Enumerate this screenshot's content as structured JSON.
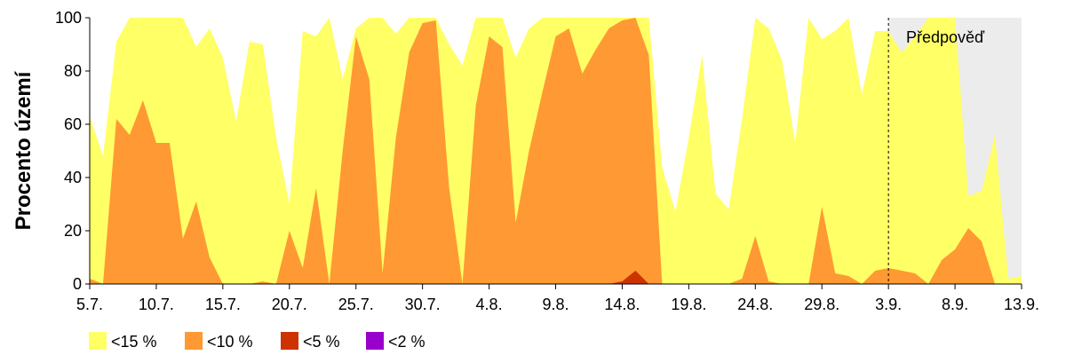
{
  "chart_data": {
    "type": "area",
    "ylabel": "Procento území",
    "ylim": [
      0,
      100
    ],
    "yticks": [
      0,
      20,
      40,
      60,
      80,
      100
    ],
    "x_range": [
      "5.7.",
      "13.9."
    ],
    "xticks": [
      "5.7.",
      "10.7.",
      "15.7.",
      "20.7.",
      "25.7.",
      "30.7.",
      "4.8.",
      "9.8.",
      "14.8.",
      "19.8.",
      "24.8.",
      "29.8.",
      "3.9.",
      "8.9.",
      "13.9."
    ],
    "dates": [
      "5.7.",
      "6.7.",
      "7.7.",
      "8.7.",
      "9.7.",
      "10.7.",
      "11.7.",
      "12.7.",
      "13.7.",
      "14.7.",
      "15.7.",
      "16.7.",
      "17.7.",
      "18.7.",
      "19.7.",
      "20.7.",
      "21.7.",
      "22.7.",
      "23.7.",
      "24.7.",
      "25.7.",
      "26.7.",
      "27.7.",
      "28.7.",
      "29.7.",
      "30.7.",
      "31.7.",
      "1.8.",
      "2.8.",
      "3.8.",
      "4.8.",
      "5.8.",
      "6.8.",
      "7.8.",
      "8.8.",
      "9.8.",
      "10.8.",
      "11.8.",
      "12.8.",
      "13.8.",
      "14.8.",
      "15.8.",
      "16.8.",
      "17.8.",
      "18.8.",
      "19.8.",
      "20.8.",
      "21.8.",
      "22.8.",
      "23.8.",
      "24.8.",
      "25.8.",
      "26.8.",
      "27.8.",
      "28.8.",
      "29.8.",
      "30.8.",
      "31.8.",
      "1.9.",
      "2.9.",
      "3.9.",
      "4.9.",
      "5.9.",
      "6.9.",
      "7.9.",
      "8.9.",
      "9.9.",
      "10.9.",
      "11.9.",
      "12.9.",
      "13.9."
    ],
    "series": [
      {
        "name": "<15 %",
        "color": "#ffff66",
        "values": [
          63,
          48,
          91,
          100,
          100,
          100,
          100,
          100,
          89,
          96,
          85,
          61,
          91,
          90,
          55,
          30,
          95,
          93,
          100,
          77,
          96,
          100,
          100,
          94,
          100,
          100,
          100,
          90,
          82,
          100,
          100,
          100,
          85,
          96,
          100,
          100,
          100,
          100,
          100,
          100,
          100,
          100,
          100,
          44,
          27,
          55,
          86,
          34,
          28,
          62,
          100,
          96,
          84,
          53,
          100,
          92,
          95,
          100,
          71,
          95,
          95,
          87,
          93,
          100,
          100,
          100,
          33,
          35,
          56,
          2,
          3
        ]
      },
      {
        "name": "<10 %",
        "color": "#ff9933",
        "values": [
          2,
          0,
          62,
          56,
          69,
          53,
          53,
          17,
          31,
          10,
          0,
          0,
          0,
          1,
          0,
          20,
          6,
          36,
          0,
          50,
          93,
          77,
          4,
          55,
          87,
          98,
          99,
          36,
          0,
          67,
          93,
          89,
          23,
          50,
          72,
          93,
          96,
          79,
          88,
          96,
          99,
          100,
          86,
          0,
          0,
          0,
          0,
          0,
          0,
          2,
          18,
          1,
          0,
          0,
          0,
          29,
          4,
          3,
          0,
          5,
          6,
          5,
          4,
          0,
          9,
          13,
          21,
          16,
          0,
          0,
          0
        ]
      },
      {
        "name": "<5 %",
        "color": "#cc3300",
        "values": [
          0,
          0,
          0,
          0,
          0,
          0,
          0,
          0,
          0,
          0,
          0,
          0,
          0,
          0,
          0,
          0,
          0,
          0,
          0,
          0,
          0,
          0,
          0,
          0,
          0,
          0,
          0,
          0,
          0,
          0,
          0,
          0,
          0,
          0,
          0,
          0,
          0,
          0,
          0,
          0,
          1,
          5,
          0,
          0,
          0,
          0,
          0,
          0,
          0,
          0,
          0,
          0,
          0,
          0,
          0,
          0,
          0,
          0,
          0,
          0,
          0,
          0,
          0,
          0,
          0,
          0,
          0,
          0,
          0,
          0,
          0
        ]
      },
      {
        "name": "<2 %",
        "color": "#9900cc",
        "values": [
          0,
          0,
          0,
          0,
          0,
          0,
          0,
          0,
          0,
          0,
          0,
          0,
          0,
          0,
          0,
          0,
          0,
          0,
          0,
          0,
          0,
          0,
          0,
          0,
          0,
          0,
          0,
          0,
          0,
          0,
          0,
          0,
          0,
          0,
          0,
          0,
          0,
          0,
          0,
          0,
          0,
          0,
          0,
          0,
          0,
          0,
          0,
          0,
          0,
          0,
          0,
          0,
          0,
          0,
          0,
          0,
          0,
          0,
          0,
          0,
          0,
          0,
          0,
          0,
          0,
          0,
          0,
          0,
          0,
          0,
          0
        ]
      }
    ],
    "forecast": {
      "label": "Předpověď",
      "start": "3.9.",
      "end": "13.9.",
      "shade_color": "#ececec"
    },
    "grid": false,
    "legend_position": "bottom-left"
  }
}
